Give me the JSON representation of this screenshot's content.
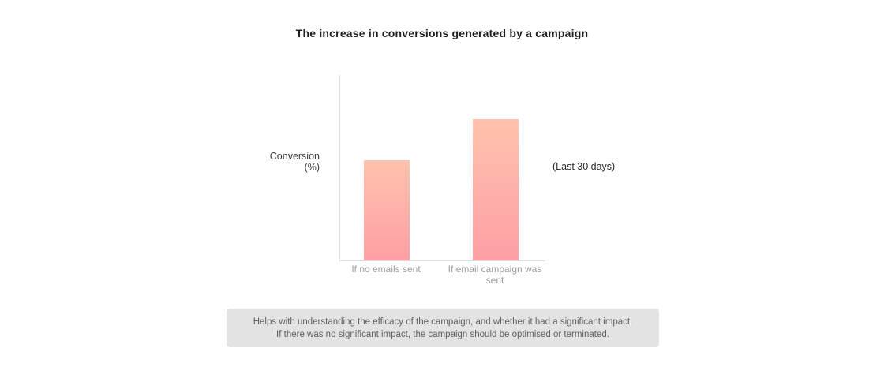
{
  "chart_data": {
    "type": "bar",
    "title": "The increase in conversions generated by a campaign",
    "ylabel_line1": "Conversion",
    "ylabel_line2": "(%)",
    "annotation": "(Last 30 days)",
    "categories": [
      "If no emails sent",
      "If email campaign was sent"
    ],
    "values": [
      54,
      76
    ],
    "values_estimated": true,
    "ylim": [
      0,
      100
    ],
    "grid": false,
    "legend": false,
    "tick_value_labels_shown": false,
    "colors": {
      "bar_gradient_top": "#ffc2ad",
      "bar_gradient_bottom": "#fe9fa5",
      "axis_line": "#dcdcdc",
      "tick_label": "#9d9d9d",
      "title_text": "#1e1e1e"
    }
  },
  "note": {
    "line1": "Helps with understanding the efficacy of the campaign, and whether it had a significant impact.",
    "line2": "If there was no significant impact, the campaign should be optimised or terminated.",
    "background": "#e3e3e3",
    "text_color": "#5f5f5f"
  }
}
